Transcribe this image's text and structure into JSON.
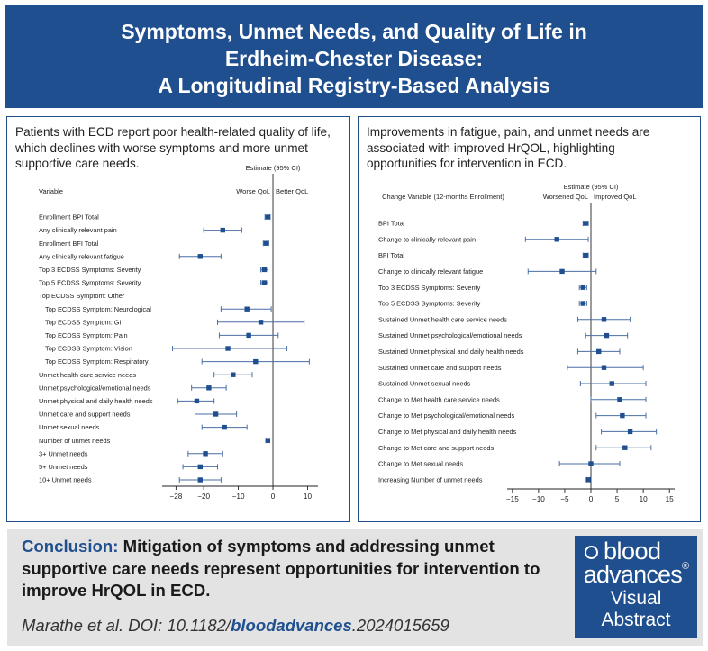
{
  "title": {
    "line1": "Symptoms, Unmet Needs, and Quality of Life in",
    "line2": "Erdheim-Chester Disease:",
    "line3": "A Longitudinal Registry-Based Analysis"
  },
  "left_panel": {
    "text_lines": [
      "Patients with ECD report poor health-related quality of life,",
      "which declines with worse symptoms and more unmet",
      "supportive care needs."
    ]
  },
  "right_panel": {
    "text_lines": [
      "Improvements in fatigue, pain, and unmet needs are",
      "associated with improved HrQOL, highlighting",
      "opportunities for intervention in ECD."
    ]
  },
  "chart_data": [
    {
      "type": "forest",
      "col_header": "Variable",
      "estimate_header": "Estimate (95% CI)",
      "worse_label": "Worse QoL",
      "better_label": "Better QoL",
      "xlim": [
        -32,
        13
      ],
      "xticks": [
        -28,
        -20,
        -10,
        0,
        10
      ],
      "reference_line": 0,
      "rows": [
        {
          "label": "Enrollment BPI Total",
          "est": -1.5,
          "lo": -2.3,
          "hi": -0.8,
          "indent": 0
        },
        {
          "label": "Any clinically relevant pain",
          "est": -14.5,
          "lo": -20,
          "hi": -9,
          "indent": 0
        },
        {
          "label": "Enrollment BFI Total",
          "est": -2.0,
          "lo": -2.8,
          "hi": -1.2,
          "indent": 0
        },
        {
          "label": "Any clinically relevant fatigue",
          "est": -21,
          "lo": -27,
          "hi": -15,
          "indent": 0
        },
        {
          "label": "Top 3 ECDSS Symptoms: Severity",
          "est": -2.5,
          "lo": -3.5,
          "hi": -1.5,
          "indent": 0
        },
        {
          "label": "Top 5 ECDSS Symptoms: Severity",
          "est": -2.5,
          "lo": -3.5,
          "hi": -1.5,
          "indent": 0
        },
        {
          "label": "Top ECDSS Symptom: Other",
          "indent": 0
        },
        {
          "label": "Top ECDSS Symptom: Neurological",
          "est": -7.5,
          "lo": -15,
          "hi": -0.5,
          "indent": 1
        },
        {
          "label": "Top ECDSS Symptom: GI",
          "est": -3.5,
          "lo": -16,
          "hi": 9,
          "indent": 1
        },
        {
          "label": "Top ECDSS Symptom: Pain",
          "est": -7,
          "lo": -15.5,
          "hi": 1.5,
          "indent": 1
        },
        {
          "label": "Top ECDSS Symptom: Vision",
          "est": -13,
          "lo": -29,
          "hi": 4,
          "indent": 1
        },
        {
          "label": "Top ECDSS Symptom: Respiratory",
          "est": -5,
          "lo": -20.5,
          "hi": 10.5,
          "indent": 1
        },
        {
          "label": "Unmet health care service needs",
          "est": -11.5,
          "lo": -17,
          "hi": -6,
          "indent": 0
        },
        {
          "label": "Unmet psychological/emotional needs",
          "est": -18.5,
          "lo": -23.5,
          "hi": -13.5,
          "indent": 0
        },
        {
          "label": "Unmet physical and daily health needs",
          "est": -22,
          "lo": -27.5,
          "hi": -17,
          "indent": 0
        },
        {
          "label": "Unmet care and support needs",
          "est": -16.5,
          "lo": -22.5,
          "hi": -10.5,
          "indent": 0
        },
        {
          "label": "Unmet sexual needs",
          "est": -14,
          "lo": -20.5,
          "hi": -7.5,
          "indent": 0
        },
        {
          "label": "Number of unmet needs",
          "est": -1.5,
          "lo": -2.0,
          "hi": -1.0,
          "indent": 0
        },
        {
          "label": "3+ Unmet needs",
          "est": -19.5,
          "lo": -24.5,
          "hi": -14.5,
          "indent": 0
        },
        {
          "label": "5+ Unmet needs",
          "est": -21,
          "lo": -26,
          "hi": -16,
          "indent": 0
        },
        {
          "label": "10+ Unmet needs",
          "est": -21,
          "lo": -27,
          "hi": -15,
          "indent": 0
        }
      ]
    },
    {
      "type": "forest",
      "col_header": "Change Variable (12-months Enrollment)",
      "estimate_header": "Estimate (95% CI)",
      "worse_label": "Worsened QoL",
      "better_label": "Improved QoL",
      "xlim": [
        -16,
        16
      ],
      "xticks": [
        -15,
        -10,
        -5,
        0,
        5,
        10,
        15
      ],
      "reference_line": 0,
      "rows": [
        {
          "label": "BPI Total",
          "est": -1.0,
          "lo": -1.5,
          "hi": -0.5
        },
        {
          "label": "Change to clinically relevant pain",
          "est": -6.5,
          "lo": -12.5,
          "hi": -0.5
        },
        {
          "label": "BFI Total",
          "est": -1.0,
          "lo": -1.5,
          "hi": -0.5
        },
        {
          "label": "Change to clinically relevant fatigue",
          "est": -5.5,
          "lo": -12,
          "hi": 1
        },
        {
          "label": "Top 3 ECDSS Symptoms: Severity",
          "est": -1.5,
          "lo": -2.2,
          "hi": -0.8
        },
        {
          "label": "Top 5 ECDSS Symptoms: Severity",
          "est": -1.5,
          "lo": -2.2,
          "hi": -0.8
        },
        {
          "label": "Sustained Unmet health care service needs",
          "est": 2.5,
          "lo": -2.5,
          "hi": 7.5
        },
        {
          "label": "Sustained Unmet psychological/emotional needs",
          "est": 3,
          "lo": -1,
          "hi": 7
        },
        {
          "label": "Sustained Unmet physical and daily health needs",
          "est": 1.5,
          "lo": -2.5,
          "hi": 5.5
        },
        {
          "label": "Sustained Unmet care and support needs",
          "est": 2.5,
          "lo": -4.5,
          "hi": 10
        },
        {
          "label": "Sustained Unmet sexual needs",
          "est": 4,
          "lo": -2,
          "hi": 10.5
        },
        {
          "label": "Change to Met health care service needs",
          "est": 5.5,
          "lo": 0,
          "hi": 10.5
        },
        {
          "label": "Change to Met psychological/emotional needs",
          "est": 6,
          "lo": 1,
          "hi": 10.5
        },
        {
          "label": "Change to Met physical and daily health needs",
          "est": 7.5,
          "lo": 2,
          "hi": 12.5
        },
        {
          "label": "Change to Met care and support needs",
          "est": 6.5,
          "lo": 1,
          "hi": 11.5
        },
        {
          "label": "Change to Met sexual needs",
          "est": 0,
          "lo": -6,
          "hi": 5.5
        },
        {
          "label": "Increasing Number of unmet needs",
          "est": -0.5,
          "lo": -0.8,
          "hi": -0.2
        }
      ]
    }
  ],
  "conclusion": {
    "label": "Conclusion:",
    "text": "Mitigation of symptoms and addressing unmet supportive care needs represent opportunities for intervention to improve HrQOL in ECD."
  },
  "citation": {
    "prefix": "Marathe et al. DOI: 10.1182/",
    "journal": "bloodadvances",
    "suffix": ".2024015659"
  },
  "logo": {
    "word1": "blood",
    "word2": "advances",
    "reg_mark": "®",
    "word3": "Visual",
    "word4": "Abstract"
  },
  "colors": {
    "brand_blue": "#1f4f8f",
    "marker": "#1f4f8f",
    "ci_line": "#4a6fa5",
    "conclusion_bg": "#e3e3e3"
  }
}
